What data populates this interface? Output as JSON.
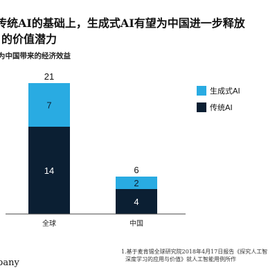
{
  "header": {
    "title_line1": "传统AI的基础上，生成式AI有望为中国进一步释放",
    "title_line2": "的价值潜力",
    "subtitle": "为中国带来的经济效益"
  },
  "footnote": {
    "line1": "1.基于麦肯锡全球研究院2018年4月17日报告《探究人工智",
    "line2": "深度学习的应用与价值》就人工智能用例所作"
  },
  "logo": {
    "text": "pany"
  },
  "chart_data": {
    "type": "bar",
    "stacked": true,
    "categories": [
      "全球",
      "中国"
    ],
    "series": [
      {
        "name": "传统AI",
        "values": [
          14,
          4
        ],
        "color": "#0b1f33"
      },
      {
        "name": "生成式AI",
        "values": [
          7,
          2
        ],
        "color": "#29abe2"
      }
    ],
    "totals": [
      21,
      6
    ],
    "ylim": [
      0,
      21
    ],
    "grid": false,
    "legend_position": "right"
  }
}
